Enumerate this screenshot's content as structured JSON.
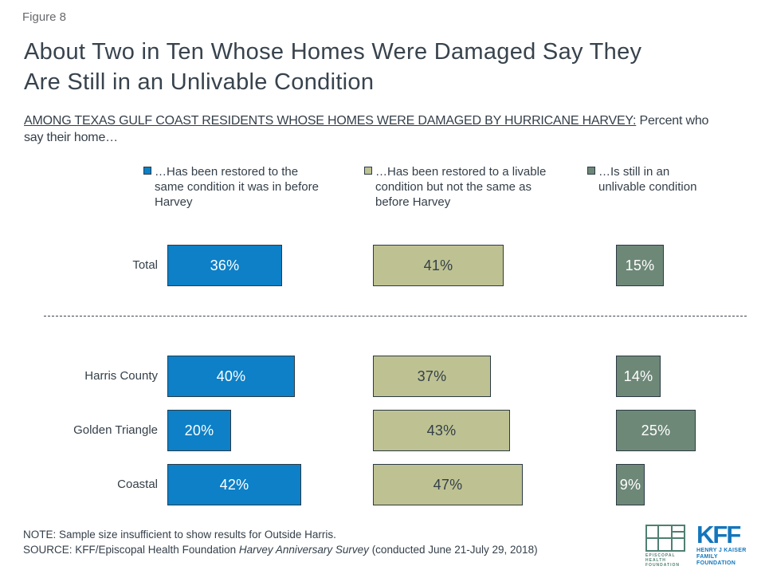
{
  "figure_label": "Figure 8",
  "title": {
    "lines": [
      "About Two in Ten Whose Homes Were Damaged Say They",
      "Are Still in an Unlivable Condition"
    ]
  },
  "subtitle": {
    "underlined": "AMONG TEXAS GULF COAST RESIDENTS WHOSE HOMES WERE DAMAGED BY HURRICANE HARVEY:",
    "rest": " Percent who say their home…"
  },
  "chart_data": {
    "type": "bar",
    "orientation": "horizontal",
    "unit": "%",
    "title": "About Two in Ten Whose Homes Were Damaged Say They Are Still in an Unlivable Condition",
    "categories": [
      "Total",
      "Harris County",
      "Golden Triangle",
      "Coastal"
    ],
    "series": [
      {
        "name": "…Has been restored to the same condition it was in before Harvey",
        "color": "#0d80c7",
        "value_label_color": "#ffffff",
        "values": [
          36,
          40,
          20,
          42
        ]
      },
      {
        "name": "…Has been restored to a livable condition but not the same as before Harvey",
        "color": "#bec292",
        "value_label_color": "#343f49",
        "values": [
          41,
          37,
          43,
          47
        ]
      },
      {
        "name": "…Is still in an unlivable condition",
        "color": "#6e8878",
        "value_label_color": "#ffffff",
        "values": [
          15,
          14,
          25,
          9
        ]
      }
    ],
    "legend_position": "top",
    "value_labels": "inside",
    "divider_after_category": "Total",
    "xlim": [
      0,
      100
    ]
  },
  "note_line": "NOTE: Sample size insufficient to show results for Outside Harris.",
  "source": {
    "prefix": "SOURCE: KFF/Episcopal Health Foundation ",
    "italic": "Harvey Anniversary Survey",
    "suffix": " (conducted June 21-July 29, 2018)"
  },
  "logos": {
    "ehf_caption_line1": "EPISCOPAL HEALTH",
    "ehf_caption_line2": "FOUNDATION",
    "kff_text": "KFF",
    "kff_caption_line1": "HENRY J KAISER",
    "kff_caption_line2": "FAMILY FOUNDATION"
  },
  "colors": {
    "restored_same_blue": "#0d80c7",
    "restored_livable_olive": "#bec292",
    "unlivable_gray_green": "#6e8878",
    "dark_text": "#343f49",
    "bar_border": "#2c3a45",
    "kff_blue": "#1276bc",
    "ehf_teal": "#4f7f72"
  }
}
